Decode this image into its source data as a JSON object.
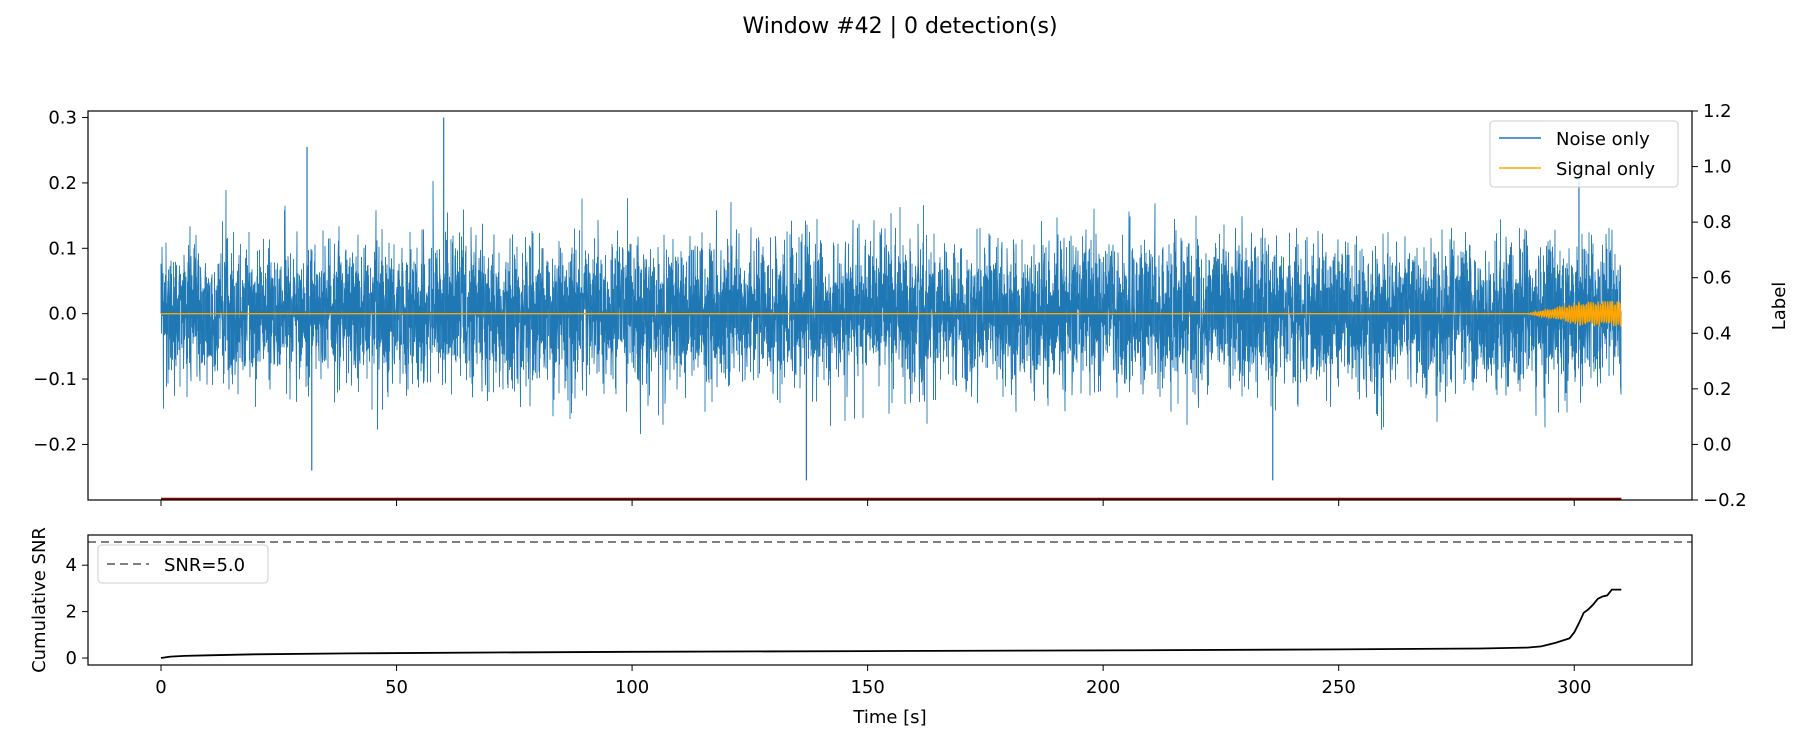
{
  "figure": {
    "title": "Window #42 | 0 detection(s)"
  },
  "colors": {
    "noise": "#1f77b4",
    "signal": "#ffa500",
    "label_line": "#8b0000",
    "snr_curve": "#000000",
    "threshold": "#808080"
  },
  "chart_data": [
    {
      "type": "line",
      "panel": "waveform",
      "title": "",
      "xlabel": "",
      "ylabel": "",
      "ylabel_right": "Label",
      "xlim": [
        -15.5,
        325
      ],
      "ylim": [
        -0.285,
        0.31
      ],
      "ylim_right": [
        -0.2,
        1.2
      ],
      "yticks": [
        "0.3",
        "0.2",
        "0.1",
        "0.0",
        "−0.1",
        "−0.2"
      ],
      "yticks_right": [
        "1.2",
        "1.0",
        "0.8",
        "0.6",
        "0.4",
        "0.2",
        "0.0",
        "−0.2"
      ],
      "legend": {
        "position": "upper right",
        "entries": [
          "Noise only",
          "Signal only"
        ]
      },
      "series": [
        {
          "name": "Noise only",
          "kind": "dense-noise",
          "x_range": [
            0,
            310
          ],
          "typical_amplitude": 0.13,
          "peak_max": 0.3,
          "peak_min": -0.26
        },
        {
          "name": "Signal only",
          "kind": "burst",
          "x_range": [
            0,
            310
          ],
          "onset": 290,
          "peak_amplitude": 0.025
        },
        {
          "name": "",
          "axis": "right",
          "kind": "constant",
          "x": [
            0,
            310
          ],
          "y": [
            -0.2,
            -0.2
          ]
        }
      ]
    },
    {
      "type": "line",
      "panel": "snr",
      "title": "",
      "xlabel": "Time [s]",
      "ylabel": "Cumulative SNR",
      "xlim": [
        -15.5,
        325
      ],
      "ylim": [
        -0.3,
        5.3
      ],
      "xticks": [
        "0",
        "50",
        "100",
        "150",
        "200",
        "250",
        "300"
      ],
      "yticks": [
        "4",
        "2",
        "0"
      ],
      "legend": {
        "position": "upper left",
        "entries": [
          "SNR=5.0"
        ]
      },
      "threshold": {
        "name": "SNR=5.0",
        "y": 5.0
      },
      "series": [
        {
          "name": "",
          "x": [
            0,
            2,
            5,
            10,
            20,
            40,
            70,
            100,
            150,
            200,
            250,
            280,
            290,
            293,
            296,
            299,
            300,
            301,
            302,
            303,
            304,
            305,
            306,
            307,
            308,
            310
          ],
          "y": [
            0.0,
            0.06,
            0.09,
            0.12,
            0.16,
            0.2,
            0.24,
            0.27,
            0.3,
            0.33,
            0.37,
            0.41,
            0.45,
            0.5,
            0.65,
            0.85,
            1.1,
            1.5,
            1.95,
            2.1,
            2.3,
            2.55,
            2.65,
            2.7,
            2.95,
            2.95
          ]
        }
      ]
    }
  ]
}
